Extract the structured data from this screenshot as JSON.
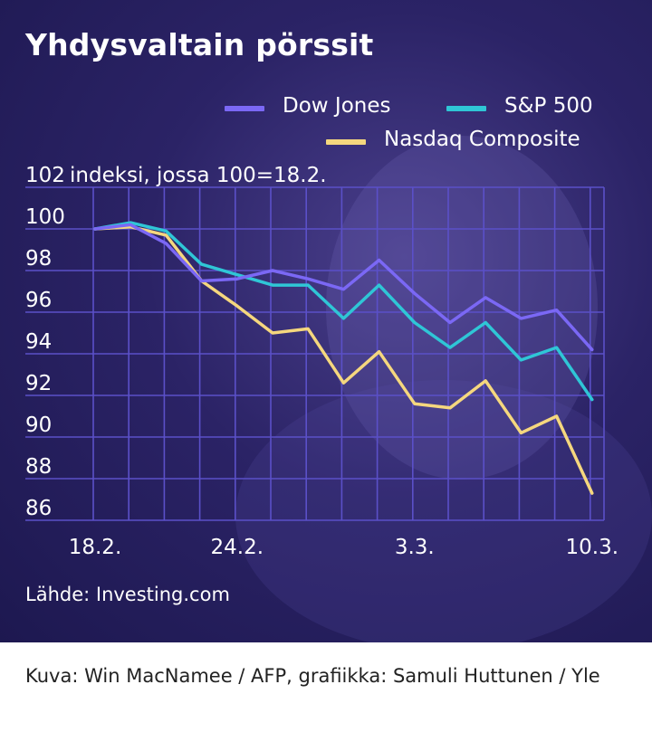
{
  "title": "Yhdysvaltain pörssit",
  "units_note": "indeksi, jossa 100=18.2.",
  "source": "Lähde: Investing.com",
  "caption": "Kuva: Win MacNamee / AFP, grafiikka: Samuli Huttunen / Yle",
  "colors": {
    "background": "#231d5a",
    "grid": "#5b50c8",
    "dow": "#7b68f5",
    "sp": "#2fc6d6",
    "nasdaq": "#f5d77e"
  },
  "chart_data": {
    "type": "line",
    "title": "Yhdysvaltain pörssit",
    "ylabel": "indeksi, jossa 100=18.2.",
    "ylim": [
      86,
      102
    ],
    "y_ticks": [
      102,
      100,
      98,
      96,
      94,
      92,
      90,
      88,
      86
    ],
    "x_tick_labels": [
      "18.2.",
      "24.2.",
      "3.3.",
      "10.3."
    ],
    "x": [
      "18.2.",
      "19.2.",
      "20.2.",
      "21.2.",
      "24.2.",
      "25.2.",
      "26.2.",
      "27.2.",
      "28.2.",
      "3.3.",
      "4.3.",
      "5.3.",
      "6.3.",
      "7.3.",
      "10.3."
    ],
    "grid": true,
    "legend": "top-right",
    "series": [
      {
        "name": "Dow Jones",
        "color_key": "dow",
        "values": [
          100.0,
          100.2,
          99.3,
          97.5,
          97.6,
          98.0,
          97.6,
          97.1,
          98.5,
          96.9,
          95.5,
          96.7,
          95.7,
          96.1,
          94.2
        ]
      },
      {
        "name": "S&P 500",
        "color_key": "sp",
        "values": [
          100.0,
          100.3,
          99.9,
          98.3,
          97.8,
          97.3,
          97.3,
          95.7,
          97.3,
          95.5,
          94.3,
          95.5,
          93.7,
          94.3,
          91.8
        ]
      },
      {
        "name": "Nasdaq Composite",
        "color_key": "nasdaq",
        "values": [
          100.0,
          100.1,
          99.7,
          97.5,
          96.3,
          95.0,
          95.2,
          92.6,
          94.1,
          91.6,
          91.4,
          92.7,
          90.2,
          91.0,
          87.3
        ]
      }
    ]
  }
}
